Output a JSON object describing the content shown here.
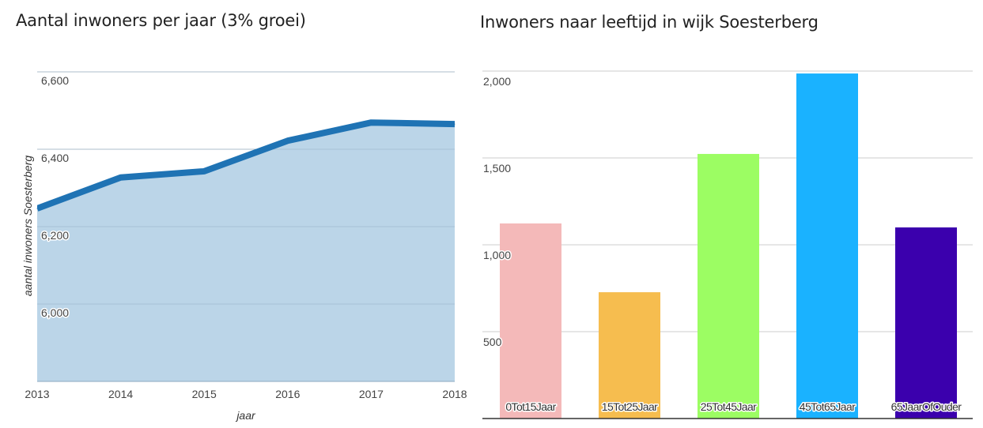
{
  "chart_data": [
    {
      "type": "area",
      "title": "Aantal inwoners per jaar (3% groei)",
      "xlabel": "jaar",
      "ylabel": "aantal inwoners Soesterberg",
      "x": [
        "2013",
        "2014",
        "2015",
        "2016",
        "2017",
        "2018"
      ],
      "series": [
        {
          "name": "aantal inwoners Soesterberg",
          "values": [
            6247,
            6327,
            6343,
            6422,
            6469,
            6465
          ]
        }
      ],
      "ylim": [
        5800,
        6600
      ],
      "yticks": [
        6000,
        6200,
        6400,
        6600
      ],
      "ytick_labels": [
        "6,000",
        "6,200",
        "6,400",
        "6,600"
      ],
      "grid": true,
      "colors": {
        "line": "#1f73b4",
        "fill": "#bbd5e8",
        "grid": "#cccccc"
      }
    },
    {
      "type": "bar",
      "title": "Inwoners naar leeftijd in wijk Soesterberg",
      "xlabel": "",
      "ylabel": "",
      "categories": [
        "0Tot15Jaar",
        "15Tot25Jaar",
        "25Tot45Jaar",
        "45Tot65Jaar",
        "65JaarOfOuder"
      ],
      "values": [
        1123,
        727,
        1523,
        1986,
        1100
      ],
      "ylim": [
        0,
        2000
      ],
      "yticks": [
        500,
        1000,
        1500,
        2000
      ],
      "ytick_labels": [
        "500",
        "1,000",
        "1,500",
        "2,000"
      ],
      "grid": true,
      "colors": [
        "#f4b9b9",
        "#f6bd4f",
        "#9cfd63",
        "#1ab2ff",
        "#3b00ad"
      ]
    }
  ]
}
